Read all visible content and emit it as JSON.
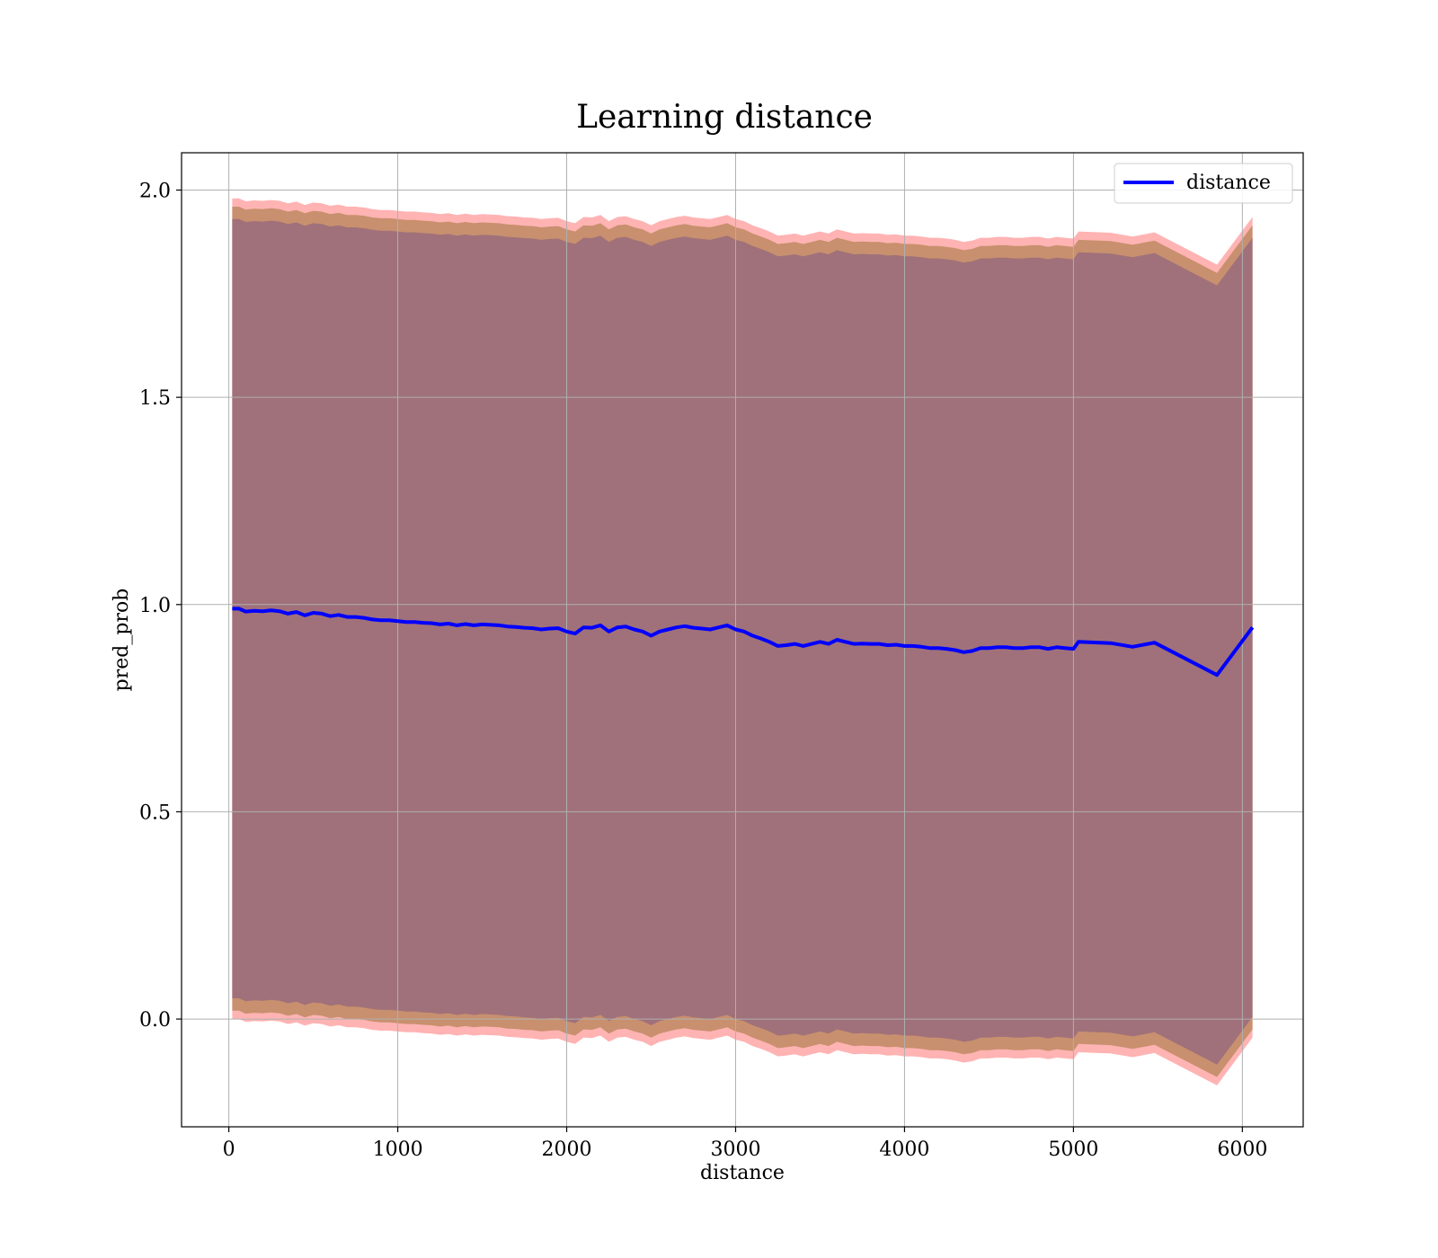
{
  "chart_data": {
    "type": "line",
    "title": "Learning distance",
    "xlabel": "distance",
    "ylabel": "pred_prob",
    "xlim": [
      -280,
      6360
    ],
    "ylim": [
      -0.26,
      2.09
    ],
    "xticks": [
      0,
      1000,
      2000,
      3000,
      4000,
      5000,
      6000
    ],
    "yticks": [
      0.0,
      0.5,
      1.0,
      1.5,
      2.0
    ],
    "grid": true,
    "legend": {
      "position": "top-right",
      "entries": [
        "distance"
      ]
    },
    "colors": {
      "line": "#0000ff",
      "band_outer": "#ff9a9a",
      "band_middle": "#c8906e",
      "band_inner": "#a0717a"
    },
    "series": [
      {
        "name": "distance",
        "x": [
          20,
          60,
          100,
          150,
          200,
          250,
          300,
          350,
          400,
          450,
          500,
          550,
          600,
          650,
          700,
          750,
          800,
          850,
          900,
          950,
          1000,
          1050,
          1100,
          1150,
          1200,
          1250,
          1300,
          1350,
          1400,
          1450,
          1500,
          1550,
          1600,
          1650,
          1700,
          1750,
          1800,
          1850,
          1900,
          1950,
          2000,
          2050,
          2100,
          2150,
          2200,
          2250,
          2300,
          2350,
          2400,
          2450,
          2500,
          2550,
          2600,
          2650,
          2700,
          2750,
          2800,
          2850,
          2900,
          2950,
          3000,
          3050,
          3100,
          3150,
          3200,
          3250,
          3300,
          3350,
          3400,
          3450,
          3500,
          3550,
          3600,
          3650,
          3700,
          3750,
          3800,
          3850,
          3900,
          3950,
          4000,
          4050,
          4100,
          4150,
          4200,
          4250,
          4300,
          4350,
          4400,
          4450,
          4500,
          4550,
          4600,
          4650,
          4700,
          4750,
          4800,
          4850,
          4900,
          4950,
          5000,
          5030,
          5220,
          5350,
          5480,
          5850,
          6060
        ],
        "y": [
          0.99,
          0.99,
          0.983,
          0.985,
          0.984,
          0.986,
          0.984,
          0.978,
          0.982,
          0.974,
          0.98,
          0.978,
          0.972,
          0.975,
          0.97,
          0.97,
          0.968,
          0.964,
          0.962,
          0.962,
          0.96,
          0.958,
          0.958,
          0.956,
          0.955,
          0.952,
          0.954,
          0.95,
          0.953,
          0.95,
          0.952,
          0.951,
          0.95,
          0.947,
          0.946,
          0.944,
          0.943,
          0.94,
          0.942,
          0.943,
          0.935,
          0.93,
          0.945,
          0.944,
          0.95,
          0.935,
          0.945,
          0.947,
          0.94,
          0.935,
          0.925,
          0.935,
          0.94,
          0.945,
          0.948,
          0.944,
          0.942,
          0.94,
          0.945,
          0.95,
          0.94,
          0.935,
          0.925,
          0.918,
          0.91,
          0.9,
          0.902,
          0.905,
          0.9,
          0.905,
          0.91,
          0.905,
          0.915,
          0.91,
          0.905,
          0.906,
          0.905,
          0.905,
          0.902,
          0.903,
          0.9,
          0.9,
          0.898,
          0.895,
          0.895,
          0.893,
          0.89,
          0.885,
          0.888,
          0.895,
          0.895,
          0.897,
          0.897,
          0.895,
          0.895,
          0.897,
          0.897,
          0.893,
          0.897,
          0.895,
          0.893,
          0.91,
          0.907,
          0.898,
          0.908,
          0.83,
          0.945
        ]
      }
    ],
    "bands": {
      "inner_half_width": 0.94,
      "middle_half_width": 0.97,
      "outer_half_width": 0.99
    }
  }
}
